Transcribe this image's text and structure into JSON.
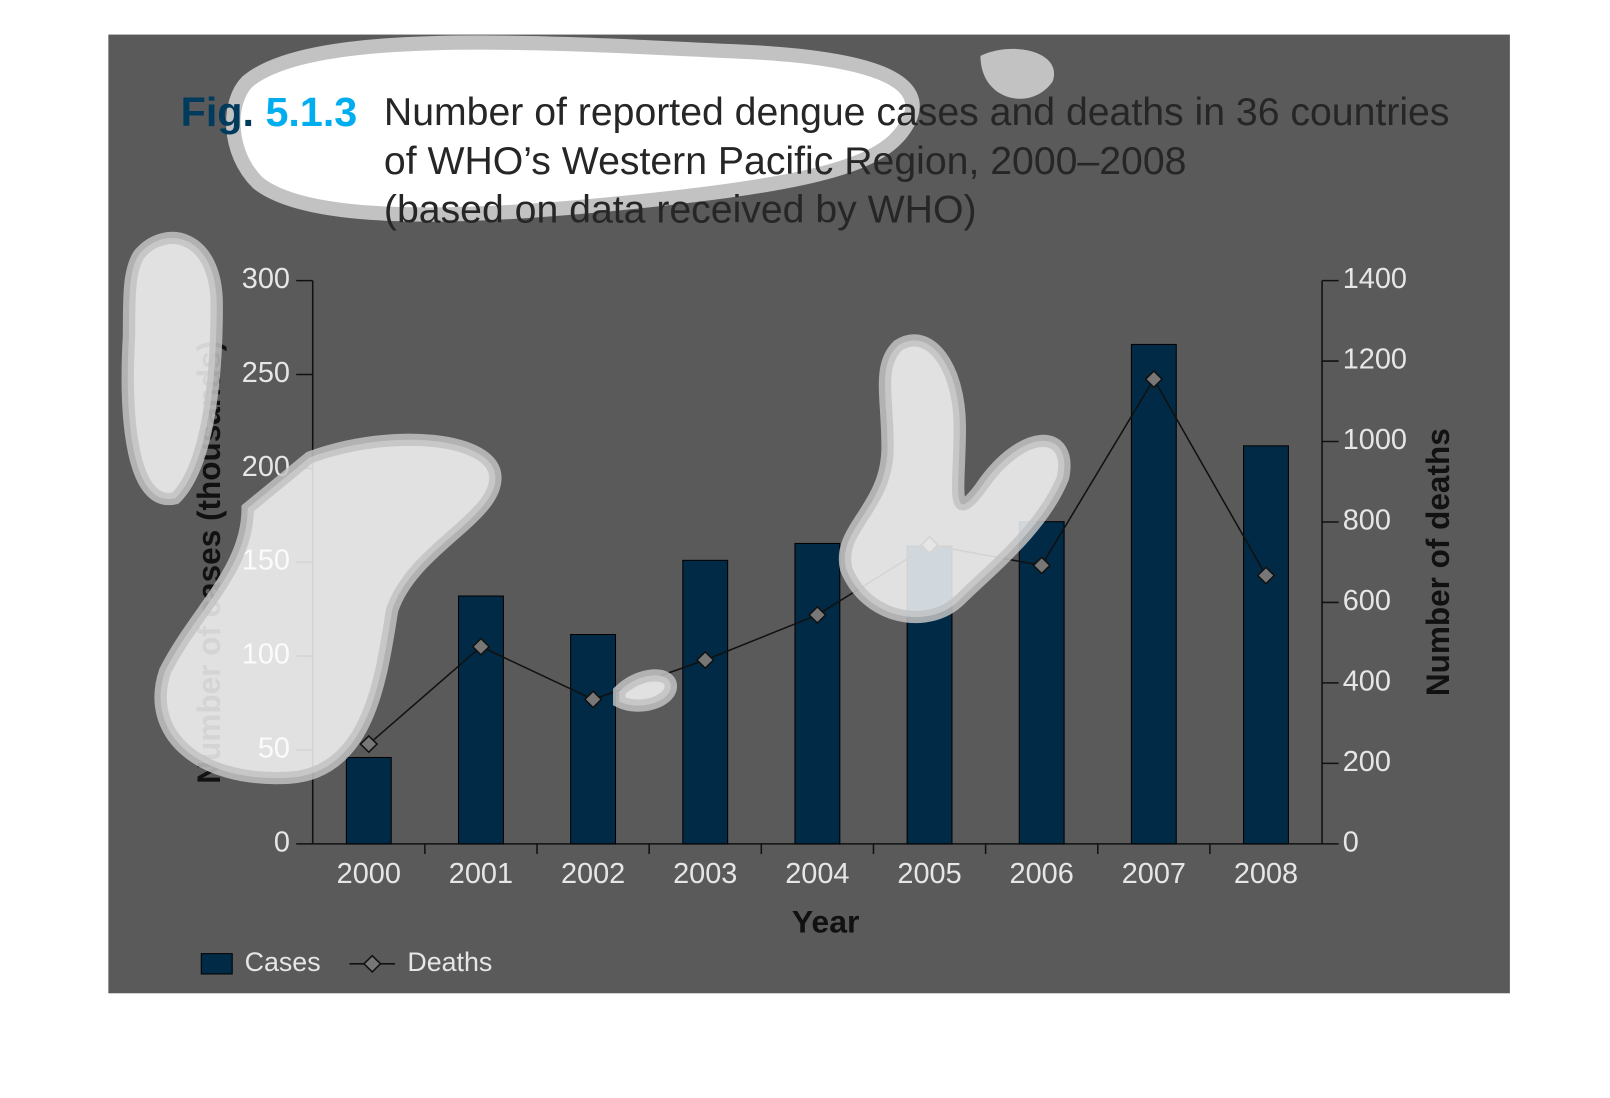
{
  "chart_data": {
    "type": "bar",
    "fig_label": "Fig. 5.1.3",
    "title": [
      "Number of reported dengue cases and deaths in 36 countries",
      "of WHO’s Western Pacific Region, 2000–2008",
      "(based on data received by WHO)"
    ],
    "xlabel": "Year",
    "ylabel": "Number of cases (thousands)",
    "y2label": "Number of deaths",
    "categories": [
      "2000",
      "2001",
      "2002",
      "2003",
      "2004",
      "2005",
      "2006",
      "2007",
      "2008"
    ],
    "series": [
      {
        "name": "Cases",
        "color": "#002a45",
        "values": [
          46,
          132,
          111.5,
          151,
          160,
          158.6,
          171.6,
          266,
          212
        ]
      },
      {
        "name": "Deaths",
        "type": "line",
        "axis": "y2",
        "color": "#111111",
        "values": [
          248,
          490,
          359,
          457,
          569,
          743,
          692,
          1155,
          667
        ]
      }
    ],
    "ylim": [
      0,
      300
    ],
    "yticks": [
      0,
      50,
      100,
      150,
      200,
      250,
      300
    ],
    "y2lim": [
      0,
      1400
    ],
    "y2ticks": [
      0,
      200,
      400,
      600,
      800,
      1000,
      1200,
      1400
    ],
    "legend": "bottom-left"
  }
}
